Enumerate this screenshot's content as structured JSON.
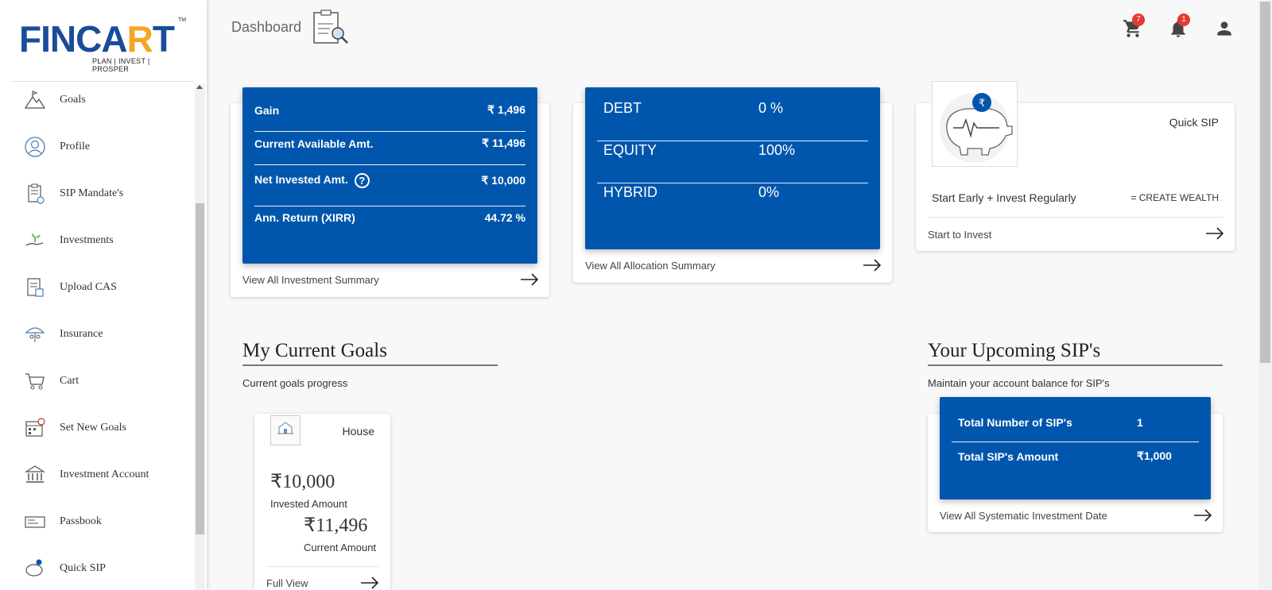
{
  "brand": {
    "logo_text": "FINCART",
    "tagline": "PLAN | INVEST | PROSPER",
    "tm": "TM",
    "brand_color": "#1a4c9a",
    "accent_color": "#f5a623"
  },
  "sidebar": {
    "items": [
      {
        "label": "Goals",
        "icon": "mountain-flag-icon"
      },
      {
        "label": "Profile",
        "icon": "user-circle-icon"
      },
      {
        "label": "SIP Mandate's",
        "icon": "clipboard-check-icon"
      },
      {
        "label": "Investments",
        "icon": "hand-plant-icon"
      },
      {
        "label": "Upload CAS",
        "icon": "document-upload-icon"
      },
      {
        "label": "Insurance",
        "icon": "umbrella-family-icon"
      },
      {
        "label": "Cart",
        "icon": "cart-icon"
      },
      {
        "label": "Set New Goals",
        "icon": "calendar-goal-icon"
      },
      {
        "label": "Investment Account",
        "icon": "bank-icon"
      },
      {
        "label": "Passbook",
        "icon": "passbook-icon"
      },
      {
        "label": "Quick SIP",
        "icon": "piggy-bank-icon"
      }
    ]
  },
  "header": {
    "title": "Dashboard",
    "cart_count": "7",
    "notification_count": "1"
  },
  "investment_summary": {
    "rows": [
      {
        "label": "Gain",
        "value": "₹ 1,496"
      },
      {
        "label": "Current Available Amt.",
        "value": "₹ 11,496"
      },
      {
        "label": "Net Invested Amt.",
        "value": "₹ 10,000"
      },
      {
        "label": "Ann. Return (XIRR)",
        "value": "44.72 %"
      }
    ],
    "help_glyph": "?",
    "link": "View All Investment Summary"
  },
  "allocation": {
    "rows": [
      {
        "label": "DEBT",
        "value": "0 %"
      },
      {
        "label": "EQUITY",
        "value": "100%"
      },
      {
        "label": "HYBRID",
        "value": "0%"
      }
    ],
    "link": "View All Allocation Summary"
  },
  "quick_sip": {
    "title": "Quick SIP",
    "tagline_left": "Start Early + Invest Regularly",
    "tagline_right": "= CREATE WEALTH",
    "link": "Start to Invest",
    "rupee_glyph": "₹"
  },
  "goals": {
    "title": "My Current Goals",
    "subtitle": "Current goals progress",
    "cards": [
      {
        "name": "House",
        "invested_amount": "₹10,000",
        "invested_label": "Invested Amount",
        "current_amount": "₹11,496",
        "current_label": "Current Amount",
        "link": "Full View"
      }
    ]
  },
  "upcoming_sips": {
    "title": "Your Upcoming SIP's",
    "subtitle": "Maintain your account balance for SIP's",
    "rows": [
      {
        "label": "Total Number of SIP's",
        "value": "1"
      },
      {
        "label": "Total SIP's Amount",
        "value": "₹1,000"
      }
    ],
    "link": "View All Systematic Investment Date"
  },
  "colors": {
    "primary_blue": "#0056ad",
    "badge_red": "#e53935",
    "background": "#f8f8f8"
  }
}
